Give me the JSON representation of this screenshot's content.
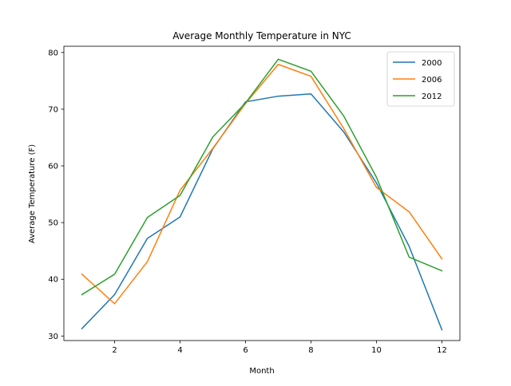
{
  "chart_data": {
    "type": "line",
    "title": "Average Monthly Temperature in NYC",
    "xlabel": "Month",
    "ylabel": "Average Temperature (F)",
    "x": [
      1,
      2,
      3,
      4,
      5,
      6,
      7,
      8,
      9,
      10,
      11,
      12
    ],
    "xlim": [
      0.45,
      12.55
    ],
    "ylim": [
      29.2,
      81.1
    ],
    "xticks": [
      2,
      4,
      6,
      8,
      10,
      12
    ],
    "yticks": [
      30,
      40,
      50,
      60,
      70,
      80
    ],
    "grid": false,
    "legend_position": "top-right",
    "series": [
      {
        "name": "2000",
        "color": "#1f77b4",
        "values": [
          31.3,
          37.3,
          47.2,
          51.0,
          63.0,
          71.3,
          72.3,
          72.7,
          66.0,
          57.0,
          45.8,
          31.1
        ]
      },
      {
        "name": "2006",
        "color": "#ff7f0e",
        "values": [
          40.9,
          35.7,
          43.1,
          55.7,
          63.1,
          71.0,
          77.9,
          75.8,
          66.6,
          56.2,
          51.9,
          43.6
        ]
      },
      {
        "name": "2012",
        "color": "#2ca02c",
        "values": [
          37.3,
          40.9,
          50.9,
          54.8,
          65.1,
          71.1,
          78.8,
          76.7,
          68.8,
          58.0,
          43.9,
          41.5
        ]
      }
    ]
  }
}
